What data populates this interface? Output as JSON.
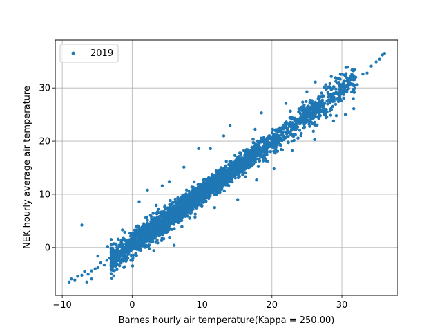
{
  "chart_data": {
    "type": "scatter",
    "title": "",
    "xlabel": "Barnes hourly air temperature(Kappa = 250.00)",
    "ylabel": "NEK hourly average air temperature",
    "xlim": [
      -11,
      38
    ],
    "ylim": [
      -9,
      39
    ],
    "xticks": [
      -10,
      0,
      10,
      20,
      30
    ],
    "yticks": [
      0,
      10,
      20,
      30
    ],
    "grid": true,
    "legend_position": "top-left",
    "color": "#1f77b4",
    "series": [
      {
        "name": "2019",
        "trend": {
          "slope": 0.98,
          "intercept": 0.4
        },
        "core_x_range": [
          -3,
          32
        ],
        "points": [
          [
            -9,
            -6.5
          ],
          [
            -8.7,
            -5.9
          ],
          [
            -8.2,
            -6.1
          ],
          [
            -7.8,
            -5.4
          ],
          [
            -7.2,
            -5.2
          ],
          [
            -6.8,
            -4.5
          ],
          [
            -6.3,
            -5.0
          ],
          [
            -5.8,
            -4.4
          ],
          [
            -5.3,
            -4.0
          ],
          [
            -4.9,
            -3.8
          ],
          [
            -4.5,
            -2.9
          ],
          [
            -4.0,
            -3.3
          ],
          [
            -3.6,
            -2.4
          ],
          [
            -3.2,
            -2.0
          ],
          [
            -2.8,
            -1.5
          ],
          [
            -7.2,
            4.2
          ],
          [
            -6.5,
            -6.5
          ],
          [
            -5.8,
            -5.9
          ],
          [
            -4.9,
            -1.6
          ],
          [
            -3.5,
            0.2
          ],
          [
            -2.5,
            -2.6
          ],
          [
            -3.0,
            1.5
          ],
          [
            -1.4,
            3.3
          ],
          [
            -1.0,
            -1.8
          ],
          [
            0.1,
            -2.0
          ],
          [
            1.0,
            8.6
          ],
          [
            2.2,
            10.8
          ],
          [
            4.3,
            11.6
          ],
          [
            5.3,
            12.4
          ],
          [
            7.4,
            15.1
          ],
          [
            9.5,
            18.6
          ],
          [
            13.1,
            21.0
          ],
          [
            3.1,
            -0.6
          ],
          [
            6.0,
            0.4
          ],
          [
            9.0,
            5.7
          ],
          [
            11.8,
            7.5
          ],
          [
            15.1,
            9.0
          ],
          [
            17.8,
            12.7
          ],
          [
            20.3,
            14.8
          ],
          [
            22.9,
            18.2
          ],
          [
            26.1,
            20.3
          ],
          [
            24.5,
            24.2
          ],
          [
            22.0,
            27.1
          ],
          [
            18.5,
            25.3
          ],
          [
            14.0,
            22.9
          ],
          [
            11.2,
            18.6
          ],
          [
            29.2,
            24.8
          ],
          [
            28.9,
            27.9
          ],
          [
            30.5,
            25.0
          ],
          [
            31.7,
            26.1
          ],
          [
            31.5,
            33.3
          ],
          [
            31.0,
            31.4
          ],
          [
            32.2,
            30.6
          ],
          [
            33.0,
            32.6
          ],
          [
            33.6,
            32.8
          ],
          [
            34.2,
            34.1
          ],
          [
            34.9,
            34.9
          ],
          [
            35.4,
            35.4
          ],
          [
            35.8,
            36.2
          ],
          [
            36.1,
            36.5
          ],
          [
            30.8,
            33.9
          ],
          [
            27.7,
            30.6
          ],
          [
            26.2,
            31.1
          ],
          [
            25.0,
            29.3
          ],
          [
            28.8,
            23.8
          ]
        ]
      }
    ]
  }
}
